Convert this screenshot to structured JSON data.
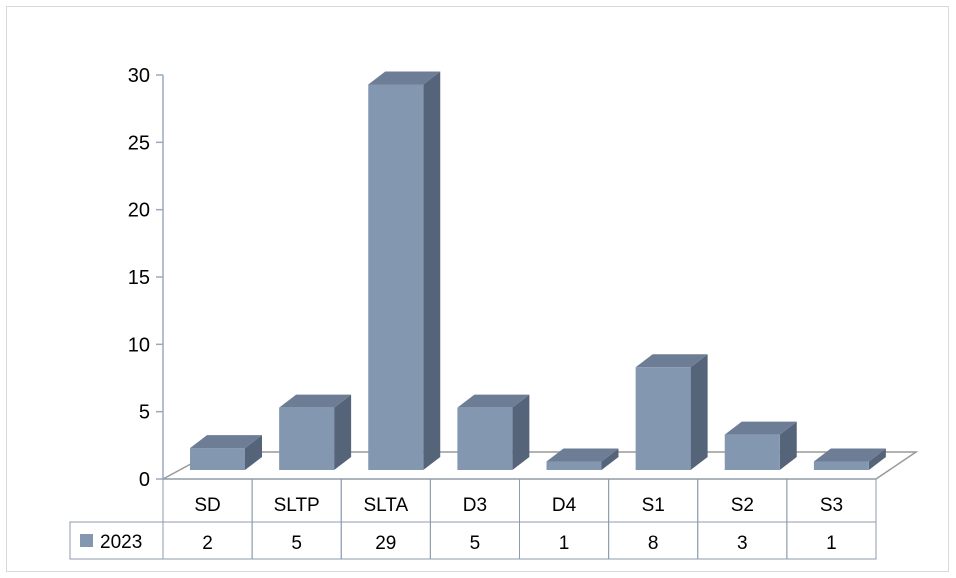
{
  "chart_data": {
    "type": "bar",
    "categories": [
      "SD",
      "SLTP",
      "SLTA",
      "D3",
      "D4",
      "S1",
      "S2",
      "S3"
    ],
    "series": [
      {
        "name": "2023",
        "values": [
          2,
          5,
          29,
          5,
          1,
          8,
          3,
          1
        ]
      }
    ],
    "ylim": [
      0,
      30
    ],
    "yticks": [
      0,
      5,
      10,
      15,
      20,
      25,
      30
    ],
    "title": "",
    "xlabel": "",
    "ylabel": "",
    "grid": false,
    "legend": "data-table-left",
    "data_table": true,
    "colors": {
      "bar_front": "#8497B0",
      "bar_side": "#56647A",
      "bar_top": "#6D7D95",
      "legend_key": "#8497B0",
      "axis": "#9aa8c0",
      "floor": "#999999"
    }
  }
}
